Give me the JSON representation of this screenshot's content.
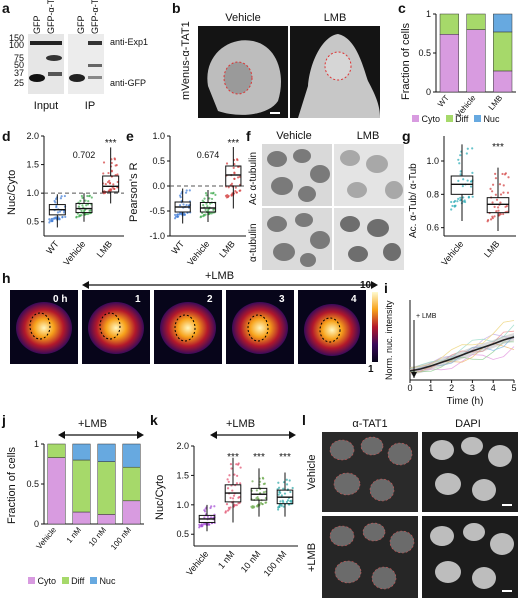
{
  "panel_letters": [
    "a",
    "b",
    "c",
    "d",
    "e",
    "f",
    "g",
    "h",
    "i",
    "j",
    "k",
    "l"
  ],
  "panel_a": {
    "lanes": [
      "GFP",
      "GFP-α-TAT1",
      "GFP",
      "GFP-α-TAT1"
    ],
    "markers": [
      "150",
      "100",
      "75",
      "50",
      "37",
      "25"
    ],
    "blots": [
      "anti-Exp1",
      "anti-GFP"
    ],
    "groups": [
      "Input",
      "IP"
    ]
  },
  "panel_b": {
    "side_label": "mVenus-α-TAT1",
    "conditions": [
      "Vehicle",
      "LMB"
    ]
  },
  "panel_c": {
    "ylabel": "Fraction of cells",
    "legend": [
      "Cyto",
      "Diff",
      "Nuc"
    ],
    "colors": {
      "Cyto": "#d89be0",
      "Diff": "#a6d96a",
      "Nuc": "#67a9e0"
    }
  },
  "panel_d": {
    "ylabel": "Nuc/Cyto",
    "pvalue": "0.702",
    "stars": "***"
  },
  "panel_e": {
    "ylabel": "Pearson's R",
    "pvalue": "0.674",
    "stars": "***"
  },
  "panel_f": {
    "conditions": [
      "Vehicle",
      "LMB"
    ],
    "rows": [
      "Ac α-tubulin",
      "α-tubulin"
    ]
  },
  "panel_g": {
    "ylabel": "Ac. α-Tub/ α-Tub",
    "stars": "***"
  },
  "panel_h": {
    "time_labels": [
      "0 h",
      "1",
      "2",
      "3",
      "4"
    ],
    "treatment": "+LMB",
    "scale_max": "10",
    "scale_min": "1"
  },
  "panel_i": {
    "ylabel": "Norm. nuc. intensity",
    "xlabel": "Time (h)",
    "annotation": "+ LMB"
  },
  "panel_j": {
    "ylabel": "Fraction of cells",
    "treatment": "+LMB",
    "legend": [
      "Cyto",
      "Diff",
      "Nuc"
    ]
  },
  "panel_k": {
    "ylabel": "Nuc/Cyto",
    "treatment": "+LMB",
    "stars": [
      "***",
      "***",
      "***"
    ]
  },
  "panel_l": {
    "columns": [
      "α-TAT1",
      "DAPI"
    ],
    "rows": [
      "Vehicle",
      "+LMB"
    ]
  },
  "chart_data": [
    {
      "panel": "c",
      "type": "bar",
      "categories": [
        "WT",
        "Vehicle",
        "LMB"
      ],
      "series": [
        {
          "name": "Cyto",
          "values": [
            0.74,
            0.8,
            0.27
          ]
        },
        {
          "name": "Diff",
          "values": [
            0.26,
            0.2,
            0.5
          ]
        },
        {
          "name": "Nuc",
          "values": [
            0.0,
            0.0,
            0.23
          ]
        }
      ],
      "ylim": [
        0,
        1
      ],
      "yticks": [
        "0",
        "0.5",
        "1"
      ],
      "stacked": true
    },
    {
      "panel": "d",
      "type": "box",
      "categories": [
        "WT",
        "Vehicle",
        "LMB"
      ],
      "series": [
        {
          "name": "WT",
          "q1": 0.62,
          "median": 0.71,
          "q3": 0.8,
          "min": 0.4,
          "max": 0.98,
          "color": "#3d7bd6"
        },
        {
          "name": "Vehicle",
          "q1": 0.66,
          "median": 0.73,
          "q3": 0.82,
          "min": 0.5,
          "max": 1.0,
          "color": "#3aa84a"
        },
        {
          "name": "LMB",
          "q1": 1.02,
          "median": 1.12,
          "q3": 1.3,
          "min": 0.82,
          "max": 1.8,
          "color": "#d23a3a"
        }
      ],
      "ylim": [
        0.25,
        2.0
      ],
      "yticks": [
        "0.5",
        "1.0",
        "1.5",
        "2.0"
      ],
      "reference": 1.0
    },
    {
      "panel": "e",
      "type": "box",
      "categories": [
        "WT",
        "Vehicle",
        "LMB"
      ],
      "series": [
        {
          "name": "WT",
          "q1": -0.52,
          "median": -0.42,
          "q3": -0.32,
          "min": -0.75,
          "max": -0.05,
          "color": "#3d7bd6"
        },
        {
          "name": "Vehicle",
          "q1": -0.52,
          "median": -0.44,
          "q3": -0.33,
          "min": -0.72,
          "max": -0.08,
          "color": "#3aa84a"
        },
        {
          "name": "LMB",
          "q1": 0.0,
          "median": 0.22,
          "q3": 0.4,
          "min": -0.45,
          "max": 0.78,
          "color": "#d23a3a"
        }
      ],
      "ylim": [
        -1.0,
        1.0
      ],
      "yticks": [
        "-1.0",
        "-0.5",
        "0.0",
        "0.5",
        "1.0"
      ],
      "reference": 0.0
    },
    {
      "panel": "g",
      "type": "box",
      "categories": [
        "Vehicle",
        "LMB"
      ],
      "series": [
        {
          "name": "Vehicle",
          "q1": 0.8,
          "median": 0.86,
          "q3": 0.91,
          "min": 0.64,
          "max": 1.1,
          "color": "#27a9b5"
        },
        {
          "name": "LMB",
          "q1": 0.69,
          "median": 0.74,
          "q3": 0.78,
          "min": 0.58,
          "max": 0.96,
          "color": "#d23a3a"
        }
      ],
      "ylim": [
        0.55,
        1.15
      ],
      "yticks": [
        "0.6",
        "0.8",
        "1.0"
      ]
    },
    {
      "panel": "i",
      "type": "line",
      "x": [
        0,
        0.5,
        1,
        1.5,
        2,
        2.5,
        3,
        3.5,
        4,
        4.5,
        5
      ],
      "series": [
        {
          "name": "mean",
          "values": [
            0.98,
            1.02,
            1.08,
            1.15,
            1.22,
            1.3,
            1.38,
            1.45,
            1.52,
            1.6,
            1.66
          ]
        }
      ],
      "xlim": [
        0,
        5
      ],
      "ylim": [
        0.8,
        2.4
      ],
      "xticks": [
        "0",
        "1",
        "2",
        "3",
        "4",
        "5"
      ],
      "yticks": []
    },
    {
      "panel": "j",
      "type": "bar",
      "categories": [
        "Vehicle",
        "1 nM",
        "10 nM",
        "100 nM"
      ],
      "series": [
        {
          "name": "Cyto",
          "values": [
            0.83,
            0.15,
            0.12,
            0.29
          ]
        },
        {
          "name": "Diff",
          "values": [
            0.17,
            0.65,
            0.66,
            0.42
          ]
        },
        {
          "name": "Nuc",
          "values": [
            0.0,
            0.2,
            0.22,
            0.29
          ]
        }
      ],
      "ylim": [
        0,
        1
      ],
      "yticks": [
        "0",
        "0.5",
        "1"
      ],
      "stacked": true
    },
    {
      "panel": "k",
      "type": "box",
      "categories": [
        "Vehicle",
        "1 nM",
        "10 nM",
        "100 nM"
      ],
      "series": [
        {
          "name": "Vehicle",
          "q1": 0.7,
          "median": 0.76,
          "q3": 0.82,
          "min": 0.55,
          "max": 1.0,
          "color": "#a34ad3"
        },
        {
          "name": "1 nM",
          "q1": 1.05,
          "median": 1.2,
          "q3": 1.34,
          "min": 0.7,
          "max": 1.8,
          "color": "#e04a6a"
        },
        {
          "name": "10 nM",
          "q1": 1.08,
          "median": 1.18,
          "q3": 1.28,
          "min": 0.8,
          "max": 1.62,
          "color": "#6aa84a"
        },
        {
          "name": "100 nM",
          "q1": 1.02,
          "median": 1.13,
          "q3": 1.25,
          "min": 0.8,
          "max": 1.55,
          "color": "#2aa5a5"
        }
      ],
      "ylim": [
        0.3,
        2.0
      ],
      "yticks": [
        "0.5",
        "1.0",
        "1.5",
        "2.0"
      ]
    }
  ]
}
